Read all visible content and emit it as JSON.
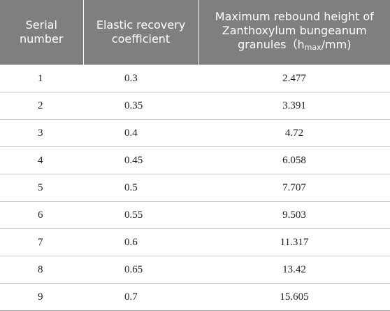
{
  "table": {
    "headers": [
      "Serial number",
      "Elastic recovery coefficient",
      "Maximum rebound height of Zanthoxylum bungeanum granules（h",
      "max",
      "/mm)"
    ],
    "rows": [
      [
        "1",
        "0.3",
        "2.477"
      ],
      [
        "2",
        "0.35",
        "3.391"
      ],
      [
        "3",
        "0.4",
        "4.72"
      ],
      [
        "4",
        "0.45",
        "6.058"
      ],
      [
        "5",
        "0.5",
        "7.707"
      ],
      [
        "6",
        "0.55",
        "9.503"
      ],
      [
        "7",
        "0.6",
        "11.317"
      ],
      [
        "8",
        "0.65",
        "13.42"
      ],
      [
        "9",
        "0.7",
        "15.605"
      ]
    ]
  }
}
